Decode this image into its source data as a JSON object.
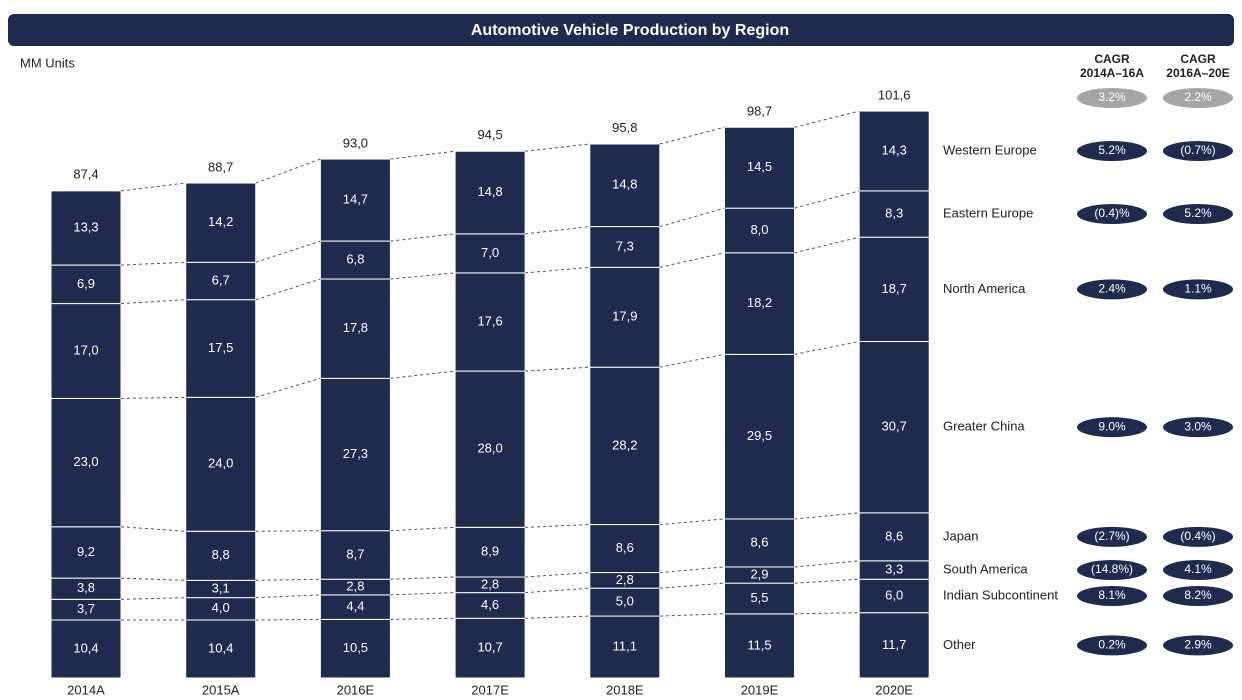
{
  "chart_data": {
    "type": "stacked_bar",
    "title": "Automotive Vehicle Production by Region",
    "unit_label": "MM Units",
    "color": "#1f2a4f",
    "categories": [
      "2014A",
      "2015A",
      "2016E",
      "2017E",
      "2018E",
      "2019E",
      "2020E"
    ],
    "totals": {
      "values": [
        87.4,
        88.7,
        93.0,
        94.5,
        95.8,
        98.7,
        101.6
      ],
      "value_labels": [
        "87,4",
        "88,7",
        "93,0",
        "94,5",
        "95,8",
        "98,7",
        "101,6"
      ]
    },
    "cagr_headers": [
      [
        "CAGR",
        "2014A–16A"
      ],
      [
        "CAGR",
        "2016A–20E"
      ]
    ],
    "total_cagr": [
      {
        "value": 3.2,
        "label": "3.2%"
      },
      {
        "value": 2.2,
        "label": "2.2%"
      }
    ],
    "series": [
      {
        "name": "Other",
        "values": [
          10.4,
          10.4,
          10.5,
          10.7,
          11.1,
          11.5,
          11.7
        ],
        "value_labels": [
          "10,4",
          "10,4",
          "10,5",
          "10,7",
          "11,1",
          "11,5",
          "11,7"
        ],
        "cagr": [
          {
            "value": 0.2,
            "label": "0.2%"
          },
          {
            "value": 2.9,
            "label": "2.9%"
          }
        ]
      },
      {
        "name": "Indian Subcontinent",
        "values": [
          3.7,
          4.0,
          4.4,
          4.6,
          5.0,
          5.5,
          6.0
        ],
        "value_labels": [
          "3,7",
          "4,0",
          "4,4",
          "4,6",
          "5,0",
          "5,5",
          "6,0"
        ],
        "cagr": [
          {
            "value": 8.1,
            "label": "8.1%"
          },
          {
            "value": 8.2,
            "label": "8.2%"
          }
        ]
      },
      {
        "name": "South America",
        "values": [
          3.8,
          3.1,
          2.8,
          2.8,
          2.8,
          2.9,
          3.3
        ],
        "value_labels": [
          "3,8",
          "3,1",
          "2,8",
          "2,8",
          "2,8",
          "2,9",
          "3,3"
        ],
        "cagr": [
          {
            "value": -14.8,
            "label": "(14.8%)"
          },
          {
            "value": 4.1,
            "label": "4.1%"
          }
        ]
      },
      {
        "name": "Japan",
        "values": [
          9.2,
          8.8,
          8.7,
          8.9,
          8.6,
          8.6,
          8.6
        ],
        "value_labels": [
          "9,2",
          "8,8",
          "8,7",
          "8,9",
          "8,6",
          "8,6",
          "8,6"
        ],
        "cagr": [
          {
            "value": -2.7,
            "label": "(2.7%)"
          },
          {
            "value": -0.4,
            "label": "(0.4%)"
          }
        ]
      },
      {
        "name": "Greater China",
        "values": [
          23.0,
          24.0,
          27.3,
          28.0,
          28.2,
          29.5,
          30.7
        ],
        "value_labels": [
          "23,0",
          "24,0",
          "27,3",
          "28,0",
          "28,2",
          "29,5",
          "30,7"
        ],
        "cagr": [
          {
            "value": 9.0,
            "label": "9.0%"
          },
          {
            "value": 3.0,
            "label": "3.0%"
          }
        ]
      },
      {
        "name": "North America",
        "values": [
          17.0,
          17.5,
          17.8,
          17.6,
          17.9,
          18.2,
          18.7
        ],
        "value_labels": [
          "17,0",
          "17,5",
          "17,8",
          "17,6",
          "17,9",
          "18,2",
          "18,7"
        ],
        "cagr": [
          {
            "value": 2.4,
            "label": "2.4%"
          },
          {
            "value": 1.1,
            "label": "1.1%"
          }
        ]
      },
      {
        "name": "Eastern Europe",
        "values": [
          6.9,
          6.7,
          6.8,
          7.0,
          7.3,
          8.0,
          8.3
        ],
        "value_labels": [
          "6,9",
          "6,7",
          "6,8",
          "7,0",
          "7,3",
          "8,0",
          "8,3"
        ],
        "cagr": [
          {
            "value": -0.4,
            "label": "(0.4)%"
          },
          {
            "value": 5.2,
            "label": "5.2%"
          }
        ]
      },
      {
        "name": "Western Europe",
        "values": [
          13.3,
          14.2,
          14.7,
          14.8,
          14.8,
          14.5,
          14.3
        ],
        "value_labels": [
          "13,3",
          "14,2",
          "14,7",
          "14,8",
          "14,8",
          "14,5",
          "14,3"
        ],
        "cagr": [
          {
            "value": 5.2,
            "label": "5.2%"
          },
          {
            "value": -0.7,
            "label": "(0.7%)"
          }
        ]
      }
    ]
  }
}
